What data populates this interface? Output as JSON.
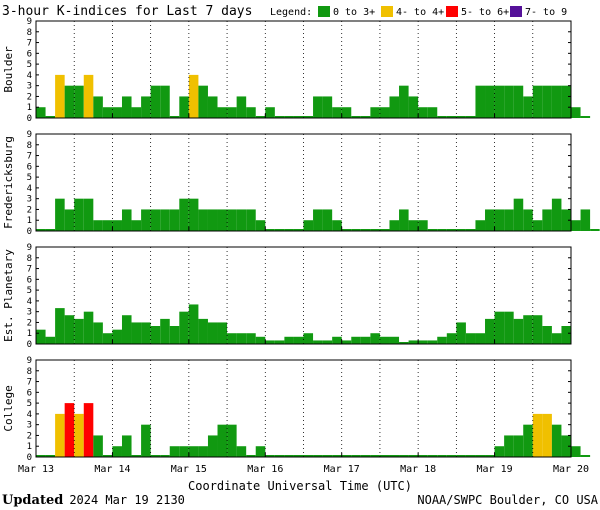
{
  "chart_data": {
    "type": "bar",
    "title": "3-hour K-indices for Last 7 days",
    "legend": {
      "label": "Legend:",
      "placement": "top-right",
      "entries": [
        {
          "label": "0 to 3+",
          "color": "#119911"
        },
        {
          "label": "4- to 4+",
          "color": "#f0c000"
        },
        {
          "label": "5- to 6+",
          "color": "#ff0000"
        },
        {
          "label": "7- to 9",
          "color": "#551199"
        }
      ]
    },
    "xlabel": "Coordinate Universal Time (UTC)",
    "x_ticks": [
      "Mar 13",
      "Mar 14",
      "Mar 15",
      "Mar 16",
      "Mar 17",
      "Mar 18",
      "Mar 19",
      "Mar 20"
    ],
    "ylim": [
      0,
      9
    ],
    "y_ticks": [
      0,
      1,
      2,
      3,
      4,
      5,
      6,
      7,
      8,
      9
    ],
    "grid": true,
    "panels": [
      {
        "name": "Boulder",
        "values": [
          1,
          0,
          4,
          3,
          3,
          4,
          2,
          1,
          1,
          2,
          1,
          2,
          3,
          3,
          0,
          2,
          4,
          3,
          2,
          1,
          1,
          2,
          1,
          0,
          1,
          0,
          0,
          0,
          0,
          2,
          2,
          1,
          1,
          0,
          0,
          1,
          1,
          2,
          3,
          2,
          1,
          1,
          0,
          0,
          0,
          0,
          3,
          3,
          3,
          3,
          3,
          2,
          3,
          3,
          3,
          3,
          1,
          0
        ]
      },
      {
        "name": "Fredericksburg",
        "values": [
          0,
          0,
          3,
          2,
          3,
          3,
          1,
          1,
          1,
          2,
          1,
          2,
          2,
          2,
          2,
          3,
          3,
          2,
          2,
          2,
          2,
          2,
          2,
          1,
          0,
          0,
          0,
          0,
          1,
          2,
          2,
          1,
          0,
          0,
          0,
          0,
          0,
          1,
          2,
          1,
          1,
          0,
          0,
          0,
          0,
          0,
          1,
          2,
          2,
          2,
          3,
          2,
          1,
          2,
          3,
          2,
          1,
          2,
          0
        ]
      },
      {
        "name": "Est. Planetary",
        "values": [
          1.33,
          0.67,
          3.33,
          2.67,
          2.33,
          3,
          2,
          1,
          1.33,
          2.67,
          2,
          2,
          1.67,
          2.33,
          1.67,
          3,
          3.67,
          2.33,
          2,
          2,
          1,
          1,
          1,
          0.67,
          0.33,
          0.33,
          0.67,
          0.67,
          1,
          0.33,
          0.33,
          0.67,
          0.33,
          0.67,
          0.67,
          1,
          0.67,
          0.67,
          0,
          0.33,
          0.33,
          0.33,
          0.67,
          1,
          2,
          1,
          1,
          2.33,
          3,
          3,
          2.33,
          2.67,
          2.67,
          1.67,
          1,
          1.67
        ]
      },
      {
        "name": "College",
        "values": [
          0,
          0,
          4,
          5,
          4,
          5,
          2,
          0,
          1,
          2,
          0,
          3,
          0,
          0,
          1,
          1,
          1,
          1,
          2,
          3,
          3,
          1,
          0,
          1,
          0,
          0,
          0,
          0,
          0,
          0,
          0,
          0,
          0,
          0,
          0,
          0,
          0,
          0,
          0,
          0,
          0,
          0,
          0,
          0,
          0,
          0,
          0,
          0,
          1,
          2,
          2,
          3,
          4,
          4,
          3,
          2,
          1,
          0
        ]
      }
    ]
  },
  "footer": {
    "updated_label": "Updated",
    "updated_value": "2024 Mar 19 2130",
    "credit": "NOAA/SWPC Boulder, CO USA"
  }
}
